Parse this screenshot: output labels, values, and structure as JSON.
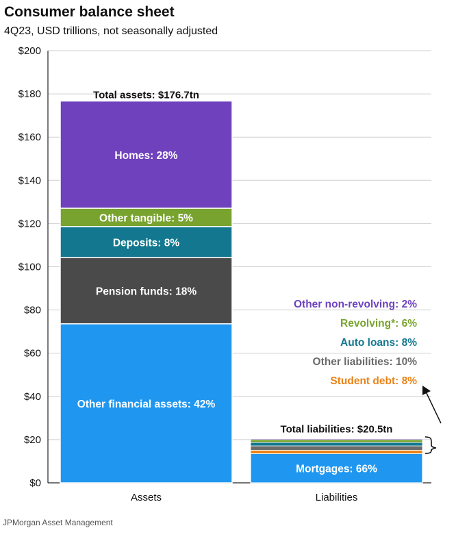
{
  "header": {
    "title": "Consumer balance sheet",
    "subtitle": "4Q23, USD trillions, not seasonally adjusted"
  },
  "footer": {
    "source": "JPMorgan Asset Management"
  },
  "chart_data": {
    "type": "bar",
    "stacked": true,
    "categories": [
      "Assets",
      "Liabilities"
    ],
    "ylim": [
      0,
      200
    ],
    "yticks": [
      0,
      20,
      40,
      60,
      80,
      100,
      120,
      140,
      160,
      180,
      200
    ],
    "ytick_labels": [
      "$0",
      "$20",
      "$40",
      "$60",
      "$80",
      "$100",
      "$120",
      "$140",
      "$160",
      "$180",
      "$200"
    ],
    "grid": true,
    "bars": [
      {
        "category": "Assets",
        "total": 176.7,
        "total_label": "Total assets: $176.7tn",
        "segments": [
          {
            "name": "Other financial assets",
            "share": 0.42,
            "value": 73.6,
            "label": "Other financial assets: 42%",
            "color": "#1f97f0"
          },
          {
            "name": "Pension funds",
            "share": 0.18,
            "value": 30.7,
            "label": "Pension funds: 18%",
            "color": "#4a4a4a"
          },
          {
            "name": "Deposits",
            "share": 0.08,
            "value": 14.3,
            "label": "Deposits: 8%",
            "color": "#13788f"
          },
          {
            "name": "Other tangible",
            "share": 0.05,
            "value": 8.5,
            "label": "Other tangible: 5%",
            "color": "#78a32e"
          },
          {
            "name": "Homes",
            "share": 0.28,
            "value": 49.6,
            "label": "Homes: 28%",
            "color": "#6f41bd"
          }
        ]
      },
      {
        "category": "Liabilities",
        "total": 20.5,
        "total_label": "Total liabilities: $20.5tn",
        "segments": [
          {
            "name": "Mortgages",
            "share": 0.66,
            "value": 13.5,
            "label": "Mortgages: 66%",
            "color": "#1f97f0"
          },
          {
            "name": "Student debt",
            "share": 0.08,
            "value": 1.6,
            "label": "Student debt: 8%",
            "color": "#ea8317"
          },
          {
            "name": "Other liabilities",
            "share": 0.1,
            "value": 2.0,
            "label": "Other liabilities: 10%",
            "color": "#6b6b6b"
          },
          {
            "name": "Auto loans",
            "share": 0.08,
            "value": 1.6,
            "label": "Auto loans: 8%",
            "color": "#13788f"
          },
          {
            "name": "Revolving*",
            "share": 0.06,
            "value": 1.3,
            "label": "Revolving*: 6%",
            "color": "#78a32e"
          },
          {
            "name": "Other non-revolving",
            "share": 0.02,
            "value": 0.4,
            "label": "Other non-revolving: 2%",
            "color": "#6f41bd"
          }
        ]
      }
    ]
  }
}
